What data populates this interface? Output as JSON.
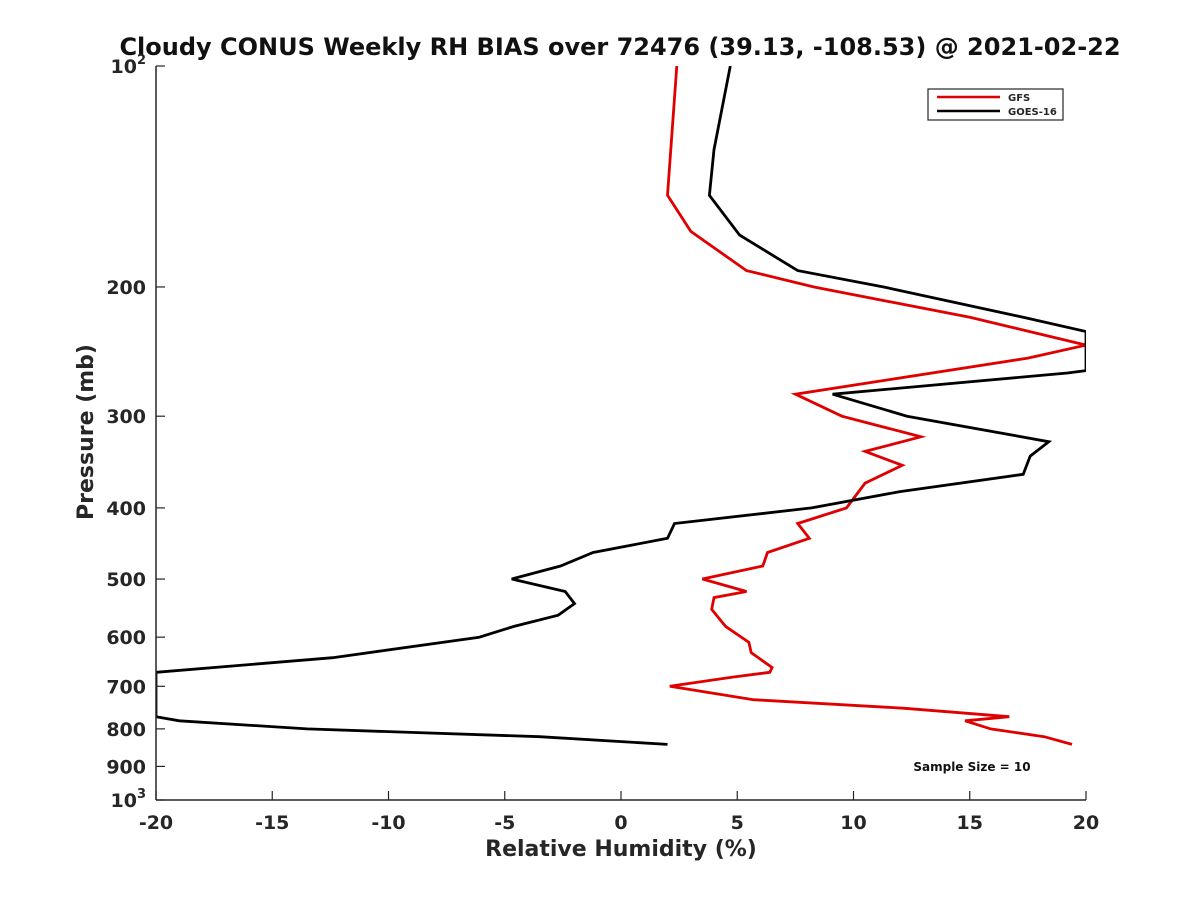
{
  "chart_data": {
    "type": "line",
    "title": "Cloudy CONUS Weekly RH BIAS over 72476 (39.13, -108.53) @ 2021-02-22",
    "xlabel": "Relative Humidity (%)",
    "ylabel": "Pressure (mb)",
    "xlim": [
      -20,
      20
    ],
    "ylim": [
      100,
      1000
    ],
    "y_scale": "log",
    "y_reversed": true,
    "x_ticks": [
      "-20",
      "-15",
      "-10",
      "-5",
      "0",
      "5",
      "10",
      "15",
      "20"
    ],
    "y_ticks": [
      {
        "base": "10",
        "exp": "2"
      },
      {
        "base": "200",
        "exp": ""
      },
      {
        "base": "300",
        "exp": ""
      },
      {
        "base": "400",
        "exp": ""
      },
      {
        "base": "500",
        "exp": ""
      },
      {
        "base": "600",
        "exp": ""
      },
      {
        "base": "700",
        "exp": ""
      },
      {
        "base": "800",
        "exp": ""
      },
      {
        "base": "900",
        "exp": ""
      },
      {
        "base": "10",
        "exp": "3"
      }
    ],
    "grid": false,
    "legend_position": "top-right",
    "annotation": "Sample Size = 10",
    "series": [
      {
        "name": "GFS",
        "color": "#e00000",
        "points": [
          [
            2.4,
            100
          ],
          [
            2.0,
            150
          ],
          [
            3.0,
            168
          ],
          [
            5.4,
            190
          ],
          [
            8.3,
            200
          ],
          [
            15.0,
            220
          ],
          [
            20.0,
            240
          ],
          [
            17.5,
            250
          ],
          [
            7.5,
            280
          ],
          [
            9.5,
            300
          ],
          [
            12.9,
            320
          ],
          [
            10.5,
            335
          ],
          [
            12.1,
            350
          ],
          [
            10.5,
            370
          ],
          [
            9.7,
            400
          ],
          [
            7.6,
            420
          ],
          [
            8.1,
            440
          ],
          [
            6.3,
            460
          ],
          [
            6.1,
            480
          ],
          [
            3.5,
            500
          ],
          [
            5.4,
            520
          ],
          [
            4.0,
            530
          ],
          [
            3.9,
            550
          ],
          [
            4.5,
            580
          ],
          [
            5.5,
            610
          ],
          [
            5.6,
            630
          ],
          [
            6.5,
            660
          ],
          [
            6.4,
            670
          ],
          [
            4.8,
            680
          ],
          [
            2.1,
            700
          ],
          [
            5.7,
            730
          ],
          [
            12.2,
            750
          ],
          [
            16.7,
            770
          ],
          [
            14.8,
            780
          ],
          [
            15.9,
            800
          ],
          [
            18.2,
            820
          ],
          [
            19.4,
            840
          ]
        ]
      },
      {
        "name": "GOES-16",
        "color": "#000000",
        "points": [
          [
            4.7,
            100
          ],
          [
            4.0,
            130
          ],
          [
            3.8,
            150
          ],
          [
            5.1,
            170
          ],
          [
            7.6,
            190
          ],
          [
            11.3,
            200
          ],
          [
            17.3,
            220
          ],
          [
            20.0,
            230
          ],
          [
            20.0,
            260
          ],
          [
            19.2,
            262
          ],
          [
            9.1,
            280
          ],
          [
            12.3,
            300
          ],
          [
            18.4,
            325
          ],
          [
            17.6,
            340
          ],
          [
            17.3,
            360
          ],
          [
            12.0,
            380
          ],
          [
            8.2,
            400
          ],
          [
            2.3,
            420
          ],
          [
            2.0,
            440
          ],
          [
            -1.2,
            460
          ],
          [
            -2.6,
            480
          ],
          [
            -4.7,
            500
          ],
          [
            -2.4,
            520
          ],
          [
            -2.0,
            540
          ],
          [
            -2.7,
            560
          ],
          [
            -4.6,
            580
          ],
          [
            -6.1,
            600
          ],
          [
            -12.4,
            640
          ],
          [
            -20.0,
            670
          ],
          [
            -20.0,
            770
          ],
          [
            -19.0,
            780
          ],
          [
            -13.5,
            800
          ],
          [
            -3.5,
            820
          ],
          [
            2.0,
            840
          ]
        ]
      }
    ]
  }
}
